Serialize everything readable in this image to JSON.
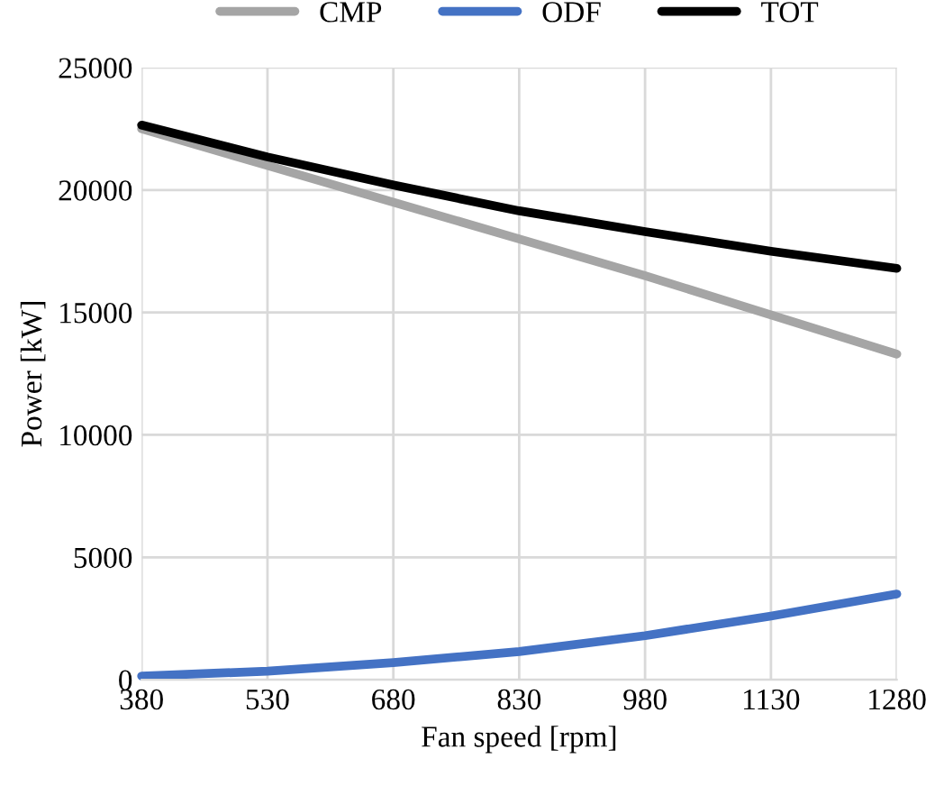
{
  "chart_data": {
    "type": "line",
    "xlabel": "Fan speed [rpm]",
    "ylabel": "Power [kW]",
    "x": [
      380,
      530,
      680,
      830,
      980,
      1130,
      1280
    ],
    "series": [
      {
        "name": "CMP",
        "color": "#a5a5a5",
        "values": [
          22500,
          21000,
          19500,
          18000,
          16500,
          14900,
          13300
        ]
      },
      {
        "name": "ODF",
        "color": "#4472c4",
        "values": [
          150,
          350,
          700,
          1150,
          1800,
          2600,
          3500
        ]
      },
      {
        "name": "TOT",
        "color": "#000000",
        "values": [
          22650,
          21350,
          20200,
          19150,
          18300,
          17500,
          16800
        ]
      }
    ],
    "xlim": [
      380,
      1280
    ],
    "xticks": [
      380,
      530,
      680,
      830,
      980,
      1130,
      1280
    ],
    "ylim": [
      0,
      25000
    ],
    "yticks": [
      0,
      5000,
      10000,
      15000,
      20000,
      25000
    ],
    "grid": true,
    "legend": "top",
    "marker": "none",
    "line_style": "solid"
  }
}
